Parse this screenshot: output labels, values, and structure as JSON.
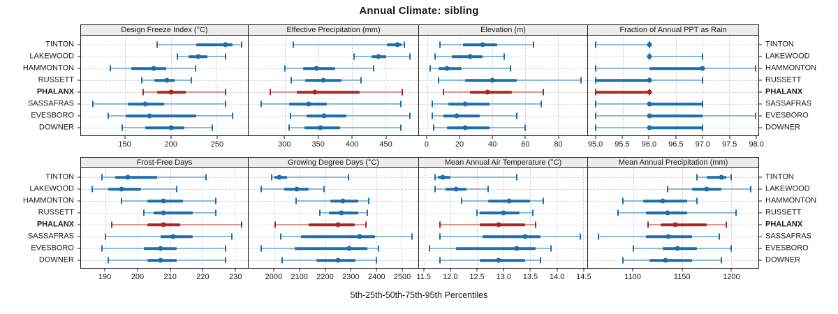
{
  "title": "Annual Climate: sibling",
  "caption": "5th-25th-50th-75th-95th Percentiles",
  "categories": [
    "TINTON",
    "LAKEWOOD",
    "HAMMONTON",
    "RUSSETT",
    "PHALANX",
    "SASSAFRAS",
    "EVESBORO",
    "DOWNER"
  ],
  "highlight_category": "PHALANX",
  "colors": {
    "series": "#1c6fad",
    "series_light": "#8cb8d9",
    "highlight": "#b3231e",
    "highlight_light": "#dc938f",
    "strip_bg": "#ececec",
    "panel_border": "#1a1a1a",
    "grid": "#c9c9c9"
  },
  "percentile_labels": [
    "5th",
    "25th",
    "50th",
    "75th",
    "95th"
  ],
  "chart_data": [
    {
      "type": "scatter",
      "title": "Design Freeze Index (°C)",
      "xlim": [
        102,
        284
      ],
      "ticks": [
        150,
        200,
        250
      ],
      "tick_labels": [
        "150",
        "200",
        "250"
      ],
      "percentiles": [
        [
          185,
          228,
          260,
          267,
          277
        ],
        [
          207,
          219,
          230,
          240,
          260
        ],
        [
          134,
          157,
          181,
          195,
          227
        ],
        [
          168,
          182,
          196,
          204,
          222
        ],
        [
          170,
          185,
          200,
          216,
          260
        ],
        [
          115,
          153,
          172,
          193,
          260
        ],
        [
          132,
          151,
          177,
          228,
          267
        ],
        [
          147,
          172,
          200,
          215,
          245
        ]
      ]
    },
    {
      "type": "scatter",
      "title": "Effective Precipitation (mm)",
      "xlim": [
        246,
        499
      ],
      "ticks": [
        300,
        350,
        400,
        450
      ],
      "tick_labels": [
        "300",
        "350",
        "400",
        "450"
      ],
      "percentiles": [
        [
          313,
          452,
          468,
          474,
          478
        ],
        [
          403,
          429,
          440,
          451,
          486
        ],
        [
          300,
          327,
          347,
          375,
          432
        ],
        [
          309,
          330,
          357,
          384,
          414
        ],
        [
          278,
          318,
          345,
          412,
          475
        ],
        [
          265,
          306,
          336,
          363,
          473
        ],
        [
          308,
          332,
          358,
          392,
          486
        ],
        [
          306,
          329,
          353,
          382,
          473
        ]
      ]
    },
    {
      "type": "scatter",
      "title": "Elevation (m)",
      "xlim": [
        -5,
        98
      ],
      "ticks": [
        0,
        20,
        40,
        60,
        80
      ],
      "tick_labels": [
        "0",
        "20",
        "40",
        "60",
        "80"
      ],
      "percentiles": [
        [
          8,
          22,
          34,
          43,
          65
        ],
        [
          5,
          15,
          26,
          34,
          47
        ],
        [
          2,
          7,
          12,
          21,
          51
        ],
        [
          7,
          23,
          40,
          55,
          94
        ],
        [
          10,
          26,
          37,
          52,
          71
        ],
        [
          3,
          13,
          23,
          38,
          70
        ],
        [
          3,
          10,
          18,
          32,
          55
        ],
        [
          4,
          12,
          23,
          38,
          60
        ]
      ]
    },
    {
      "type": "scatter",
      "title": "Fraction of Annual PPT as Rain",
      "xlim": [
        94.85,
        98.05
      ],
      "ticks": [
        95.0,
        95.5,
        96.0,
        96.5,
        97.0,
        97.5,
        98.0
      ],
      "tick_labels": [
        "95.0",
        "95.5",
        "96.0",
        "96.5",
        "97.0",
        "97.5",
        "98.0"
      ],
      "percentiles": [
        [
          95,
          96,
          96,
          96,
          96
        ],
        [
          96,
          96,
          96,
          96,
          97
        ],
        [
          95,
          96,
          97,
          97,
          98
        ],
        [
          95,
          95,
          96,
          96,
          97
        ],
        [
          95,
          95,
          96,
          96,
          96
        ],
        [
          95,
          96,
          96,
          97,
          97
        ],
        [
          95,
          96,
          96,
          97,
          98
        ],
        [
          95,
          96,
          96,
          97,
          97
        ]
      ]
    },
    {
      "type": "scatter",
      "title": "Frost-Free Days",
      "xlim": [
        182.5,
        234
      ],
      "ticks": [
        190,
        200,
        210,
        220,
        230
      ],
      "tick_labels": [
        "190",
        "200",
        "210",
        "220",
        "230"
      ],
      "percentiles": [
        [
          189,
          193,
          197,
          206,
          221
        ],
        [
          186,
          191,
          195,
          201,
          212
        ],
        [
          195,
          203,
          208,
          214,
          224
        ],
        [
          202,
          205,
          208,
          217,
          224
        ],
        [
          192,
          203,
          208,
          213,
          232
        ],
        [
          190,
          207,
          211,
          217,
          229
        ],
        [
          189,
          202,
          207,
          212,
          227
        ],
        [
          191,
          203,
          207,
          212,
          227
        ]
      ]
    },
    {
      "type": "scatter",
      "title": "Growing Degree Days (°C)",
      "xlim": [
        1900,
        2565
      ],
      "ticks": [
        2000,
        2100,
        2200,
        2300,
        2400,
        2500
      ],
      "tick_labels": [
        "2000",
        "2100",
        "2200",
        "2300",
        "2400",
        "2500"
      ],
      "percentiles": [
        [
          1990,
          2000,
          2020,
          2050,
          2290
        ],
        [
          1950,
          2040,
          2090,
          2135,
          2195
        ],
        [
          2085,
          2220,
          2270,
          2330,
          2370
        ],
        [
          2180,
          2215,
          2265,
          2330,
          2365
        ],
        [
          2005,
          2135,
          2250,
          2315,
          2360
        ],
        [
          2025,
          2105,
          2335,
          2395,
          2540
        ],
        [
          1950,
          2080,
          2295,
          2365,
          2410
        ],
        [
          2030,
          2165,
          2250,
          2320,
          2400
        ]
      ]
    },
    {
      "type": "scatter",
      "title": "Mean Annual Air Temperature (°C)",
      "xlim": [
        11.4,
        14.58
      ],
      "ticks": [
        11.5,
        12.0,
        12.5,
        13.0,
        13.5,
        14.0,
        14.5
      ],
      "tick_labels": [
        "11.5",
        "12.0",
        "12.5",
        "13.0",
        "13.5",
        "14.0",
        "14.5"
      ],
      "percentiles": [
        [
          11.7,
          11.75,
          11.85,
          12.0,
          13.25
        ],
        [
          11.7,
          11.9,
          12.1,
          12.3,
          12.7
        ],
        [
          12.2,
          12.7,
          13.1,
          13.5,
          13.75
        ],
        [
          12.5,
          12.55,
          13.0,
          13.3,
          13.55
        ],
        [
          11.8,
          12.55,
          12.9,
          13.4,
          13.6
        ],
        [
          11.8,
          12.6,
          13.4,
          13.7,
          14.45
        ],
        [
          11.6,
          12.1,
          13.25,
          13.6,
          13.9
        ],
        [
          11.8,
          12.55,
          12.9,
          13.4,
          13.7
        ]
      ]
    },
    {
      "type": "scatter",
      "title": "Mean Annual Precipitation (mm)",
      "xlim": [
        1054,
        1228
      ],
      "ticks": [
        1100,
        1150,
        1200
      ],
      "tick_labels": [
        "1100",
        "1150",
        "1200"
      ],
      "percentiles": [
        [
          1165,
          1175,
          1190,
          1195,
          1200
        ],
        [
          1135,
          1160,
          1175,
          1190,
          1220
        ],
        [
          1090,
          1110,
          1130,
          1155,
          1165
        ],
        [
          1085,
          1113,
          1135,
          1155,
          1205
        ],
        [
          1115,
          1128,
          1143,
          1175,
          1195
        ],
        [
          1065,
          1113,
          1136,
          1160,
          1188
        ],
        [
          1100,
          1130,
          1145,
          1165,
          1200
        ],
        [
          1090,
          1117,
          1133,
          1160,
          1190
        ]
      ]
    }
  ]
}
